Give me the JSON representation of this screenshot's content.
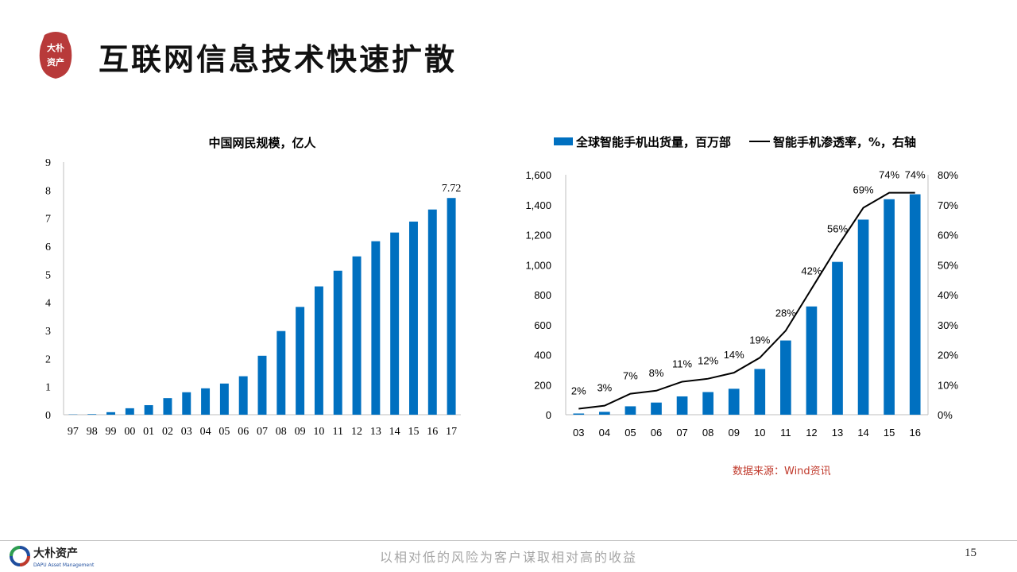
{
  "header": {
    "seal_text": "大朴资产",
    "title": "互联网信息技术快速扩散"
  },
  "chart_data": [
    {
      "type": "bar",
      "title": "中国网民规模，亿人",
      "categories": [
        "97",
        "98",
        "99",
        "00",
        "01",
        "02",
        "03",
        "04",
        "05",
        "06",
        "07",
        "08",
        "09",
        "10",
        "11",
        "12",
        "13",
        "14",
        "15",
        "16",
        "17"
      ],
      "values": [
        0.01,
        0.02,
        0.09,
        0.23,
        0.34,
        0.59,
        0.8,
        0.94,
        1.11,
        1.37,
        2.1,
        2.98,
        3.84,
        4.57,
        5.13,
        5.64,
        6.18,
        6.49,
        6.88,
        7.31,
        7.72
      ],
      "ylim": [
        0,
        9
      ],
      "yticks": [
        "0",
        "1",
        "2",
        "3",
        "4",
        "5",
        "6",
        "7",
        "8",
        "9"
      ],
      "data_labels": [
        {
          "index": 20,
          "text": "7.72"
        }
      ],
      "color": "#0070c0",
      "grid": false
    },
    {
      "type": "bar+line",
      "categories": [
        "03",
        "04",
        "05",
        "06",
        "07",
        "08",
        "09",
        "10",
        "11",
        "12",
        "13",
        "14",
        "15",
        "16"
      ],
      "series": [
        {
          "name": "全球智能手机出货量，百万部",
          "type": "bar",
          "axis": "left",
          "values": [
            8,
            19,
            56,
            81,
            122,
            151,
            173,
            305,
            495,
            722,
            1019,
            1301,
            1437,
            1470
          ]
        },
        {
          "name": "智能手机渗透率，%，右轴",
          "type": "line",
          "axis": "right",
          "values": [
            2,
            3,
            7,
            8,
            11,
            12,
            14,
            19,
            28,
            42,
            56,
            69,
            74,
            74
          ],
          "labels": [
            "2%",
            "3%",
            "7%",
            "8%",
            "11%",
            "12%",
            "14%",
            "19%",
            "28%",
            "42%",
            "56%",
            "69%",
            "74%",
            "74%"
          ]
        }
      ],
      "ylim_left": [
        0,
        1600
      ],
      "yticks_left": [
        "0",
        "200",
        "400",
        "600",
        "800",
        "1,000",
        "1,200",
        "1,400",
        "1,600"
      ],
      "ylim_right": [
        0,
        80
      ],
      "yticks_right": [
        "0%",
        "10%",
        "20%",
        "30%",
        "40%",
        "50%",
        "60%",
        "70%",
        "80%"
      ],
      "legend_position": "top",
      "bar_color": "#0070c0",
      "line_color": "#000000",
      "grid": false
    }
  ],
  "source_note": "数据来源：Wind资讯",
  "footer": {
    "logo_cn": "大朴资产",
    "logo_en": "DAPU Asset Management",
    "slogan": "以相对低的风险为客户谋取相对高的收益",
    "page_number": "15"
  },
  "colors": {
    "accent": "#0070c0",
    "seal_red": "#b83a3a",
    "source_red": "#c0392b"
  }
}
